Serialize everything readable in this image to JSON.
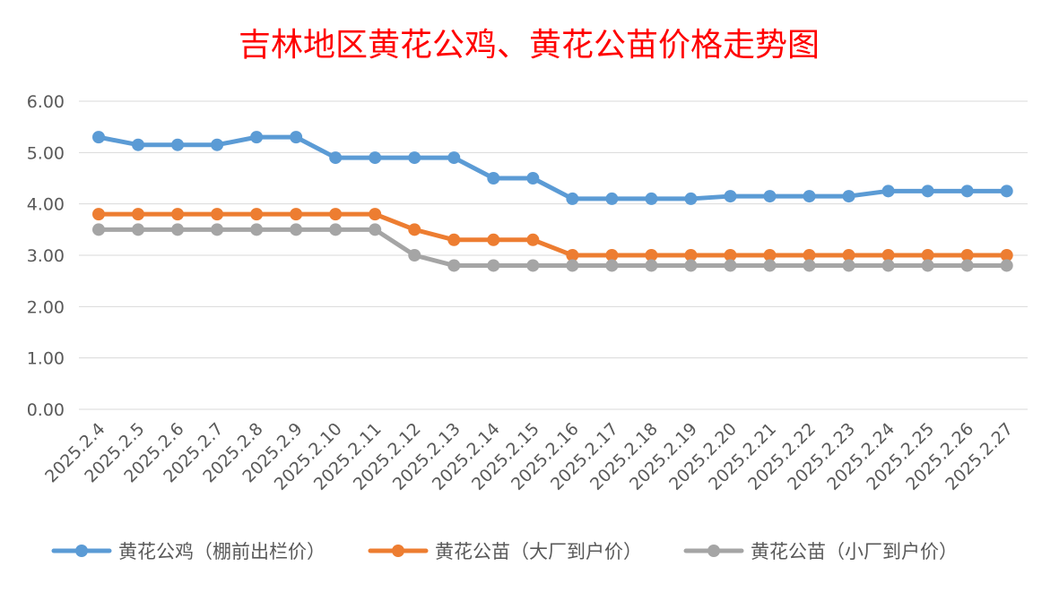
{
  "chart_data": {
    "type": "line",
    "title": "吉林地区黄花公鸡、黄花公苗价格走势图",
    "xlabel": "",
    "ylabel": "",
    "ylim": [
      0,
      6
    ],
    "y_ticks": [
      "0.00",
      "1.00",
      "2.00",
      "3.00",
      "4.00",
      "5.00",
      "6.00"
    ],
    "grid": "horizontal",
    "legend_position": "bottom",
    "categories": [
      "2025.2.4",
      "2025.2.5",
      "2025.2.6",
      "2025.2.7",
      "2025.2.8",
      "2025.2.9",
      "2025.2.10",
      "2025.2.11",
      "2025.2.12",
      "2025.2.13",
      "2025.2.14",
      "2025.2.15",
      "2025.2.16",
      "2025.2.17",
      "2025.2.18",
      "2025.2.19",
      "2025.2.20",
      "2025.2.21",
      "2025.2.22",
      "2025.2.23",
      "2025.2.24",
      "2025.2.25",
      "2025.2.26",
      "2025.2.27"
    ],
    "series": [
      {
        "name": "黄花公鸡（棚前出栏价）",
        "color": "#5b9bd5",
        "values": [
          5.3,
          5.15,
          5.15,
          5.15,
          5.3,
          5.3,
          4.9,
          4.9,
          4.9,
          4.9,
          4.5,
          4.5,
          4.1,
          4.1,
          4.1,
          4.1,
          4.15,
          4.15,
          4.15,
          4.15,
          4.25,
          4.25,
          4.25,
          4.25
        ]
      },
      {
        "name": "黄花公苗（大厂到户价）",
        "color": "#ed7d31",
        "values": [
          3.8,
          3.8,
          3.8,
          3.8,
          3.8,
          3.8,
          3.8,
          3.8,
          3.5,
          3.3,
          3.3,
          3.3,
          3.0,
          3.0,
          3.0,
          3.0,
          3.0,
          3.0,
          3.0,
          3.0,
          3.0,
          3.0,
          3.0,
          3.0
        ]
      },
      {
        "name": "黄花公苗（小厂到户价）",
        "color": "#a5a5a5",
        "values": [
          3.5,
          3.5,
          3.5,
          3.5,
          3.5,
          3.5,
          3.5,
          3.5,
          3.0,
          2.8,
          2.8,
          2.8,
          2.8,
          2.8,
          2.8,
          2.8,
          2.8,
          2.8,
          2.8,
          2.8,
          2.8,
          2.8,
          2.8,
          2.8
        ]
      }
    ]
  }
}
